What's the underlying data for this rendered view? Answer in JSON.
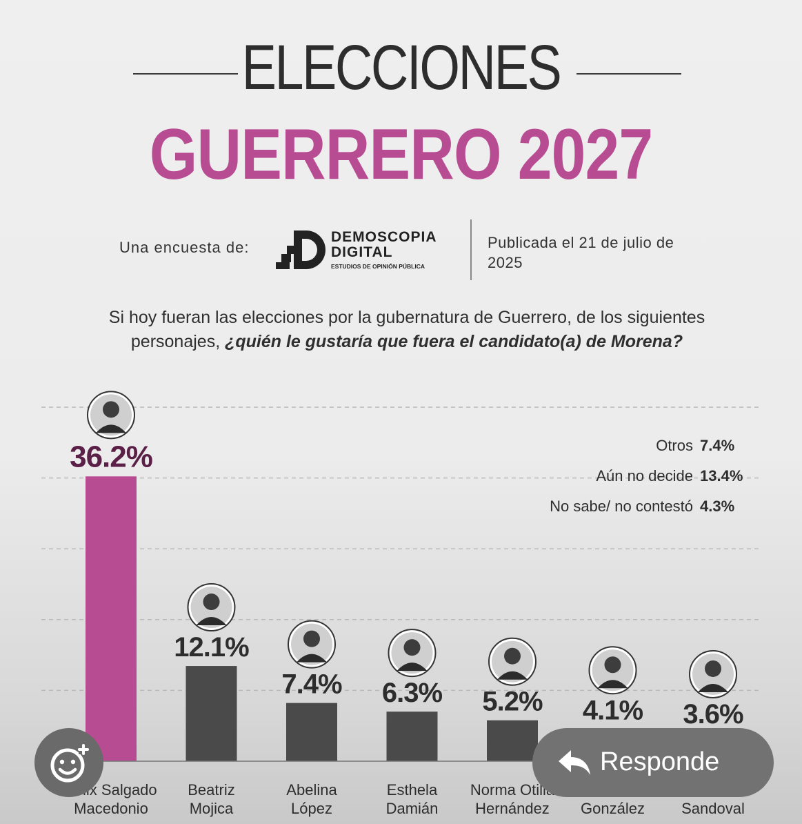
{
  "header": {
    "title_line1": "ELECCIONES",
    "title_line2": "GUERRERO 2027",
    "survey_by": "Una encuesta de:",
    "brand_line1": "DEMOSCOPIA",
    "brand_line2": "DIGITAL",
    "brand_tagline": "ESTUDIOS DE OPINIÓN PÚBLICA",
    "published": "Publicada el 21 de julio de 2025"
  },
  "question": {
    "plain": "Si hoy fueran las elecciones por la gubernatura de Guerrero, de los siguientes personajes,",
    "emphasis": "¿quién le gustaría que fuera el candidato(a) de Morena?"
  },
  "chart_data": {
    "type": "bar",
    "categories": [
      "Félix Salgado Macedonio",
      "Beatriz Mojica",
      "Abelina López",
      "Esthela Damián",
      "Norma Otilia Hernández",
      "González",
      "Sandoval"
    ],
    "category_lines": [
      [
        "Félix Salgado",
        "Macedonio"
      ],
      [
        "Beatriz",
        "Mojica"
      ],
      [
        "Abelina",
        "López"
      ],
      [
        "Esthela",
        "Damián"
      ],
      [
        "Norma Otilia",
        "Hernández"
      ],
      [
        "",
        "González"
      ],
      [
        "",
        "Sandoval"
      ]
    ],
    "values": [
      36.2,
      12.1,
      7.4,
      6.3,
      5.2,
      4.1,
      3.6
    ],
    "value_labels": [
      "36.2%",
      "12.1%",
      "7.4%",
      "6.3%",
      "5.2%",
      "4.1%",
      "3.6%"
    ],
    "ylim": [
      0,
      45
    ],
    "grid": true,
    "bar_colors": [
      "#b84c93",
      "#4a4a4a",
      "#4a4a4a",
      "#4a4a4a",
      "#4a4a4a",
      "#4a4a4a",
      "#4a4a4a"
    ],
    "others": [
      {
        "label": "Otros",
        "value": "7.4%"
      },
      {
        "label": "Aún no decide",
        "value": "13.4%"
      },
      {
        "label": "No sabe/ no contestó",
        "value": "4.3%"
      }
    ]
  },
  "overlay": {
    "react_icon": "smiley-plus-icon",
    "reply_icon": "reply-arrow-icon",
    "reply_label": "Responde"
  },
  "colors": {
    "accent": "#b84c93",
    "bar_gray": "#4a4a4a",
    "text_dark": "#2d2d2d"
  }
}
